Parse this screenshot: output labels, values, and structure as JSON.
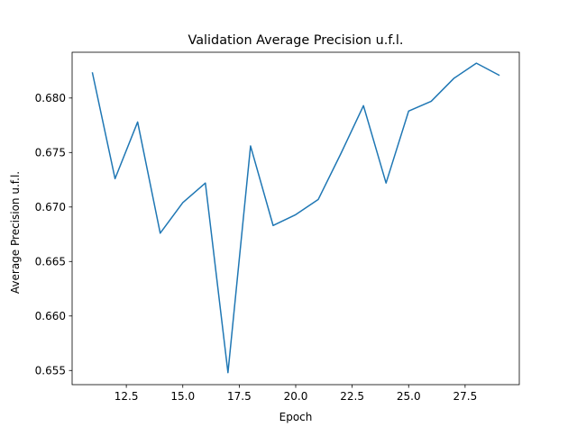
{
  "chart_data": {
    "type": "line",
    "title": "Validation Average Precision u.f.l.",
    "xlabel": "Epoch",
    "ylabel": "Average Precision u.f.l.",
    "xlim": [
      10.1,
      29.9
    ],
    "ylim": [
      0.6537,
      0.6842
    ],
    "x_ticks": [
      12.5,
      15.0,
      17.5,
      20.0,
      22.5,
      25.0,
      27.5
    ],
    "x_tick_labels": [
      "12.5",
      "15.0",
      "17.5",
      "20.0",
      "22.5",
      "25.0",
      "27.5"
    ],
    "y_ticks": [
      0.655,
      0.66,
      0.665,
      0.67,
      0.675,
      0.68
    ],
    "y_tick_labels": [
      "0.655",
      "0.660",
      "0.665",
      "0.670",
      "0.675",
      "0.680"
    ],
    "grid": false,
    "legend": "none",
    "series": [
      {
        "color": "#1f77b4",
        "x": [
          11,
          12,
          13,
          14,
          15,
          16,
          17,
          18,
          19,
          20,
          21,
          22,
          23,
          24,
          25,
          26,
          27,
          28,
          29
        ],
        "y": [
          0.6823,
          0.6726,
          0.6778,
          0.6676,
          0.6704,
          0.6722,
          0.6548,
          0.6756,
          0.6683,
          0.6693,
          0.6707,
          0.6749,
          0.6793,
          0.6722,
          0.6788,
          0.6797,
          0.6818,
          0.6832,
          0.6821
        ]
      }
    ]
  }
}
